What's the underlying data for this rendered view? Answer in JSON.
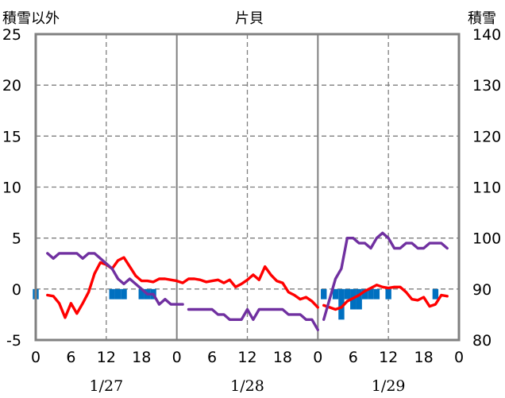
{
  "chart_data": {
    "type": "line",
    "title": "片貝",
    "left_axis_label": "積雪以外",
    "right_axis_label": "積雪",
    "left_ylim": [
      -5,
      25
    ],
    "left_ticks": [
      "-5",
      "0",
      "5",
      "10",
      "15",
      "20",
      "25"
    ],
    "right_ylim": [
      80,
      140
    ],
    "right_ticks": [
      "80",
      "90",
      "100",
      "110",
      "120",
      "130",
      "140"
    ],
    "x_range_hours": [
      0,
      72
    ],
    "x_tick_labels": [
      "0",
      "6",
      "12",
      "18",
      "0",
      "6",
      "12",
      "18",
      "0",
      "6",
      "12",
      "18",
      "0"
    ],
    "date_labels": [
      "1/27",
      "1/28",
      "1/29"
    ],
    "grid": true,
    "series": [
      {
        "name": "",
        "color": "#ff0000",
        "axis": "left",
        "kind": "line",
        "points": [
          [
            2,
            -0.6
          ],
          [
            3,
            -0.7
          ],
          [
            4,
            -1.4
          ],
          [
            5,
            -2.8
          ],
          [
            6,
            -1.4
          ],
          [
            7,
            -2.4
          ],
          [
            8,
            -1.4
          ],
          [
            9,
            -0.3
          ],
          [
            10,
            1.5
          ],
          [
            11,
            2.6
          ],
          [
            12,
            2.4
          ],
          [
            13,
            2.0
          ],
          [
            14,
            2.8
          ],
          [
            15,
            3.1
          ],
          [
            16,
            2.2
          ],
          [
            17,
            1.3
          ],
          [
            18,
            0.8
          ],
          [
            19,
            0.8
          ],
          [
            20,
            0.7
          ],
          [
            21,
            1.0
          ],
          [
            22,
            1.0
          ],
          [
            23,
            0.9
          ],
          [
            24,
            0.8
          ],
          [
            25,
            0.6
          ],
          [
            26,
            1.0
          ],
          [
            27,
            1.0
          ],
          [
            28,
            0.9
          ],
          [
            29,
            0.7
          ],
          [
            30,
            0.8
          ],
          [
            31,
            0.9
          ],
          [
            32,
            0.6
          ],
          [
            33,
            0.9
          ],
          [
            34,
            0.2
          ],
          [
            35,
            0.5
          ],
          [
            36,
            0.9
          ],
          [
            37,
            1.4
          ],
          [
            38,
            0.9
          ],
          [
            39,
            2.2
          ],
          [
            40,
            1.4
          ],
          [
            41,
            0.8
          ],
          [
            42,
            0.6
          ],
          [
            43,
            -0.3
          ],
          [
            44,
            -0.6
          ],
          [
            45,
            -1.0
          ],
          [
            46,
            -0.8
          ],
          [
            47,
            -1.2
          ],
          [
            48,
            -1.8
          ],
          [
            null,
            null
          ],
          [
            49,
            -1.6
          ],
          [
            50,
            -1.8
          ],
          [
            51,
            -2.0
          ],
          [
            52,
            -1.8
          ],
          [
            53,
            -1.2
          ],
          [
            54,
            -0.9
          ],
          [
            55,
            -0.6
          ],
          [
            56,
            -0.2
          ],
          [
            57,
            0.1
          ],
          [
            58,
            0.4
          ],
          [
            59,
            0.2
          ],
          [
            60,
            0.1
          ],
          [
            61,
            0.2
          ],
          [
            62,
            0.2
          ],
          [
            63,
            -0.3
          ],
          [
            64,
            -1.0
          ],
          [
            65,
            -1.1
          ],
          [
            66,
            -0.8
          ],
          [
            67,
            -1.7
          ],
          [
            68,
            -1.5
          ],
          [
            69,
            -0.6
          ],
          [
            70,
            -0.7
          ]
        ]
      },
      {
        "name": "",
        "color": "#7030a0",
        "axis": "right",
        "kind": "line",
        "points": [
          [
            2,
            97
          ],
          [
            3,
            96
          ],
          [
            4,
            97
          ],
          [
            5,
            97
          ],
          [
            6,
            97
          ],
          [
            7,
            97
          ],
          [
            8,
            96
          ],
          [
            9,
            97
          ],
          [
            10,
            97
          ],
          [
            11,
            96
          ],
          [
            12,
            95
          ],
          [
            13,
            94
          ],
          [
            14,
            92
          ],
          [
            15,
            91
          ],
          [
            16,
            92
          ],
          [
            17,
            91
          ],
          [
            18,
            90
          ],
          [
            19,
            89
          ],
          [
            20,
            89
          ],
          [
            21,
            87
          ],
          [
            22,
            88
          ],
          [
            23,
            87
          ],
          [
            24,
            87
          ],
          [
            25,
            87
          ],
          [
            null,
            null
          ],
          [
            26,
            86
          ],
          [
            27,
            86
          ],
          [
            28,
            86
          ],
          [
            29,
            86
          ],
          [
            30,
            86
          ],
          [
            31,
            85
          ],
          [
            32,
            85
          ],
          [
            33,
            84
          ],
          [
            34,
            84
          ],
          [
            35,
            84
          ],
          [
            36,
            86
          ],
          [
            37,
            84
          ],
          [
            38,
            86
          ],
          [
            39,
            86
          ],
          [
            40,
            86
          ],
          [
            41,
            86
          ],
          [
            42,
            86
          ],
          [
            43,
            85
          ],
          [
            44,
            85
          ],
          [
            45,
            85
          ],
          [
            46,
            84
          ],
          [
            47,
            84
          ],
          [
            48,
            82
          ],
          [
            null,
            null
          ],
          [
            49,
            84
          ],
          [
            50,
            88
          ],
          [
            51,
            92
          ],
          [
            52,
            94
          ],
          [
            53,
            100
          ],
          [
            54,
            100
          ],
          [
            55,
            99
          ],
          [
            56,
            99
          ],
          [
            57,
            98
          ],
          [
            58,
            100
          ],
          [
            59,
            101
          ],
          [
            60,
            100
          ],
          [
            61,
            98
          ],
          [
            62,
            98
          ],
          [
            63,
            99
          ],
          [
            64,
            99
          ],
          [
            65,
            98
          ],
          [
            66,
            98
          ],
          [
            67,
            99
          ],
          [
            68,
            99
          ],
          [
            69,
            99
          ],
          [
            70,
            98
          ]
        ]
      },
      {
        "name": "",
        "color": "#0070c0",
        "axis": "left",
        "kind": "bar",
        "points": [
          [
            0,
            -1.0
          ],
          [
            13,
            -1.0
          ],
          [
            14,
            -1.0
          ],
          [
            15,
            -1.0
          ],
          [
            18,
            -1.0
          ],
          [
            19,
            -1.0
          ],
          [
            20,
            -1.0
          ],
          [
            49,
            -1.0
          ],
          [
            51,
            -1.0
          ],
          [
            52,
            -3.0
          ],
          [
            53,
            -1.0
          ],
          [
            54,
            -2.0
          ],
          [
            55,
            -2.0
          ],
          [
            56,
            -1.0
          ],
          [
            57,
            -1.0
          ],
          [
            58,
            -1.0
          ],
          [
            60,
            -1.0
          ],
          [
            68,
            -1.0
          ]
        ]
      }
    ]
  }
}
